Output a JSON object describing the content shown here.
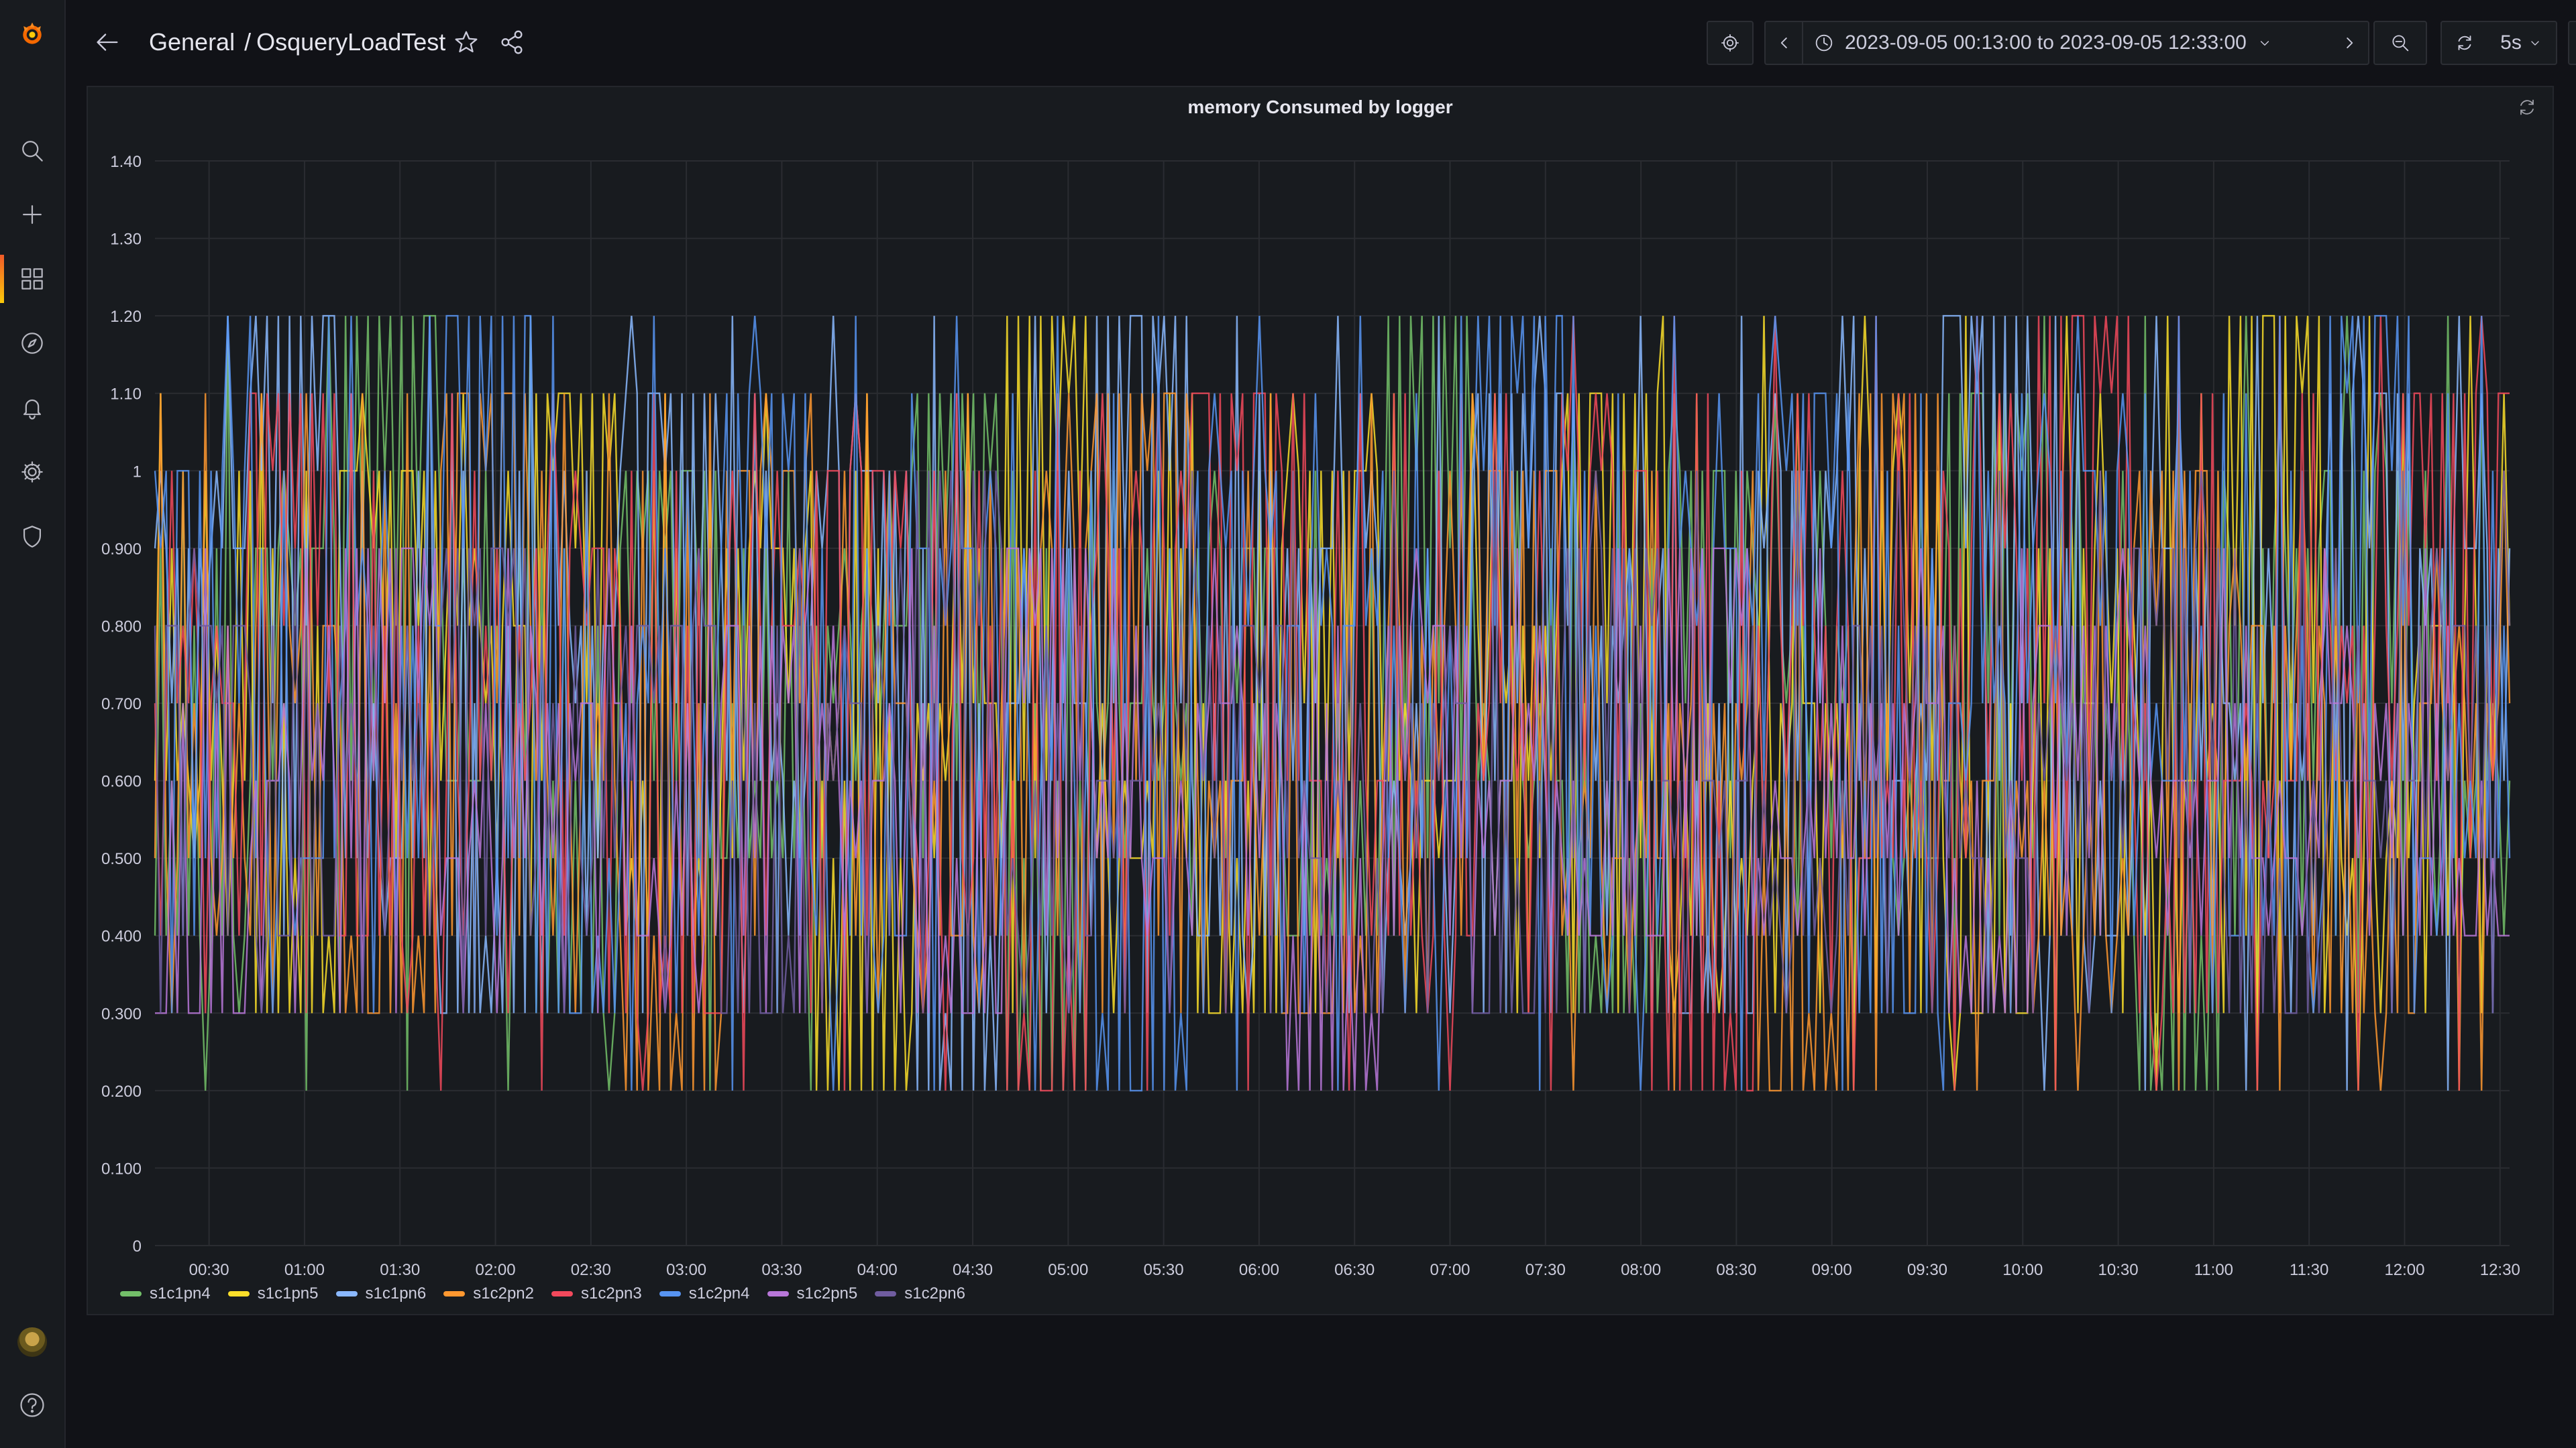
{
  "app": {
    "logo": "grafana-logo-icon",
    "brand_colors": [
      "#f05a28",
      "#fbca0a"
    ]
  },
  "sidebar": {
    "items": [
      {
        "name": "search",
        "icon": "search-icon"
      },
      {
        "name": "create",
        "icon": "plus-icon"
      },
      {
        "name": "dashboards",
        "icon": "dashboards-grid-icon",
        "active": true
      },
      {
        "name": "explore",
        "icon": "compass-icon"
      },
      {
        "name": "alerting",
        "icon": "bell-icon"
      },
      {
        "name": "configuration",
        "icon": "gear-icon"
      },
      {
        "name": "server-admin",
        "icon": "shield-icon"
      }
    ],
    "bottom": [
      {
        "name": "profile",
        "icon": "avatar"
      },
      {
        "name": "help",
        "icon": "help-icon"
      }
    ]
  },
  "header": {
    "breadcrumb_folder": "General",
    "breadcrumb_separator": "/",
    "dashboard_title": "OsqueryLoadTest",
    "time_range": "2023-09-05 00:13:00 to 2023-09-05 12:33:00",
    "refresh_interval": "5s"
  },
  "panel": {
    "title": "memory Consumed by logger"
  },
  "chart_data": {
    "type": "line",
    "title": "memory Consumed by logger",
    "xlabel": "",
    "ylabel": "",
    "x_range": [
      "00:13",
      "12:33"
    ],
    "ylim": [
      0,
      1.4
    ],
    "y_ticks": [
      "0",
      "0.100",
      "0.200",
      "0.300",
      "0.400",
      "0.500",
      "0.600",
      "0.700",
      "0.800",
      "0.900",
      "1",
      "1.10",
      "1.20",
      "1.30",
      "1.40"
    ],
    "x_ticks": [
      "00:30",
      "01:00",
      "01:30",
      "02:00",
      "02:30",
      "03:00",
      "03:30",
      "04:00",
      "04:30",
      "05:00",
      "05:30",
      "06:00",
      "06:30",
      "07:00",
      "07:30",
      "08:00",
      "08:30",
      "09:00",
      "09:30",
      "10:00",
      "10:30",
      "11:00",
      "11:30",
      "12:00",
      "12:30"
    ],
    "grid": true,
    "legend_position": "bottom-left",
    "series": [
      {
        "name": "s1c1pn4",
        "color": "#73bf69",
        "values": [
          0.4,
          0.9,
          1.2,
          0.6,
          0.3,
          1.0,
          0.5,
          0.8,
          1.1,
          0.2,
          0.7,
          0.9,
          0.4,
          1.2,
          0.6,
          0.3,
          1.0,
          0.8,
          0.5,
          1.1,
          0.7,
          0.2,
          0.9,
          1.0,
          0.6
        ]
      },
      {
        "name": "s1c1pn5",
        "color": "#fade2a",
        "values": [
          0.6,
          0.3,
          1.0,
          0.8,
          1.1,
          0.4,
          0.9,
          0.2,
          0.7,
          1.2,
          0.5,
          0.3,
          1.0,
          0.6,
          0.8,
          1.1,
          0.4,
          0.7,
          1.0,
          0.3,
          0.9,
          0.6,
          1.2,
          0.5,
          0.8
        ]
      },
      {
        "name": "s1c1pn6",
        "color": "#8ab8ff",
        "values": [
          0.9,
          1.2,
          0.5,
          0.3,
          0.8,
          1.1,
          0.6,
          1.0,
          0.2,
          0.7,
          1.2,
          0.4,
          0.9,
          0.5,
          1.1,
          0.8,
          0.3,
          1.0,
          0.6,
          1.2,
          0.4,
          0.9,
          0.7,
          1.1,
          0.9
        ]
      },
      {
        "name": "s1c2pn2",
        "color": "#ff9830",
        "values": [
          0.5,
          0.8,
          0.3,
          1.1,
          0.6,
          0.2,
          1.0,
          0.7,
          0.4,
          0.9,
          1.1,
          0.6,
          0.3,
          0.8,
          1.0,
          0.5,
          0.7,
          0.2,
          1.1,
          0.6,
          0.4,
          1.0,
          0.8,
          0.3,
          0.7
        ]
      },
      {
        "name": "s1c2pn3",
        "color": "#f2495c",
        "values": [
          0.7,
          1.1,
          0.4,
          0.6,
          0.9,
          0.3,
          0.8,
          1.0,
          0.5,
          0.2,
          0.9,
          1.1,
          0.6,
          0.4,
          0.7,
          1.0,
          0.2,
          0.8,
          0.5,
          0.9,
          1.2,
          0.3,
          0.6,
          0.8,
          1.1
        ]
      },
      {
        "name": "s1c2pn4",
        "color": "#5794f2",
        "values": [
          1.0,
          0.5,
          0.8,
          1.2,
          0.3,
          0.7,
          1.1,
          0.4,
          0.9,
          0.6,
          0.2,
          1.0,
          0.8,
          0.5,
          1.2,
          0.4,
          0.9,
          1.1,
          0.3,
          0.7,
          1.0,
          0.6,
          0.4,
          1.2,
          0.5
        ]
      },
      {
        "name": "s1c2pn5",
        "color": "#b877d9",
        "values": [
          0.3,
          0.6,
          0.9,
          0.5,
          0.7,
          0.4,
          0.8,
          0.6,
          0.3,
          0.9,
          0.5,
          0.7,
          0.2,
          0.8,
          0.6,
          0.4,
          0.9,
          0.5,
          0.7,
          0.3,
          0.8,
          0.6,
          0.5,
          0.7,
          0.4
        ]
      },
      {
        "name": "s1c2pn6",
        "color": "#705da0",
        "values": [
          0.8,
          0.4,
          0.6,
          0.9,
          0.5,
          0.8,
          0.3,
          0.7,
          1.0,
          0.4,
          0.6,
          0.8,
          0.5,
          0.7,
          0.3,
          0.9,
          0.6,
          0.4,
          0.8,
          0.5,
          0.7,
          0.9,
          0.3,
          0.6,
          0.8
        ]
      }
    ]
  }
}
